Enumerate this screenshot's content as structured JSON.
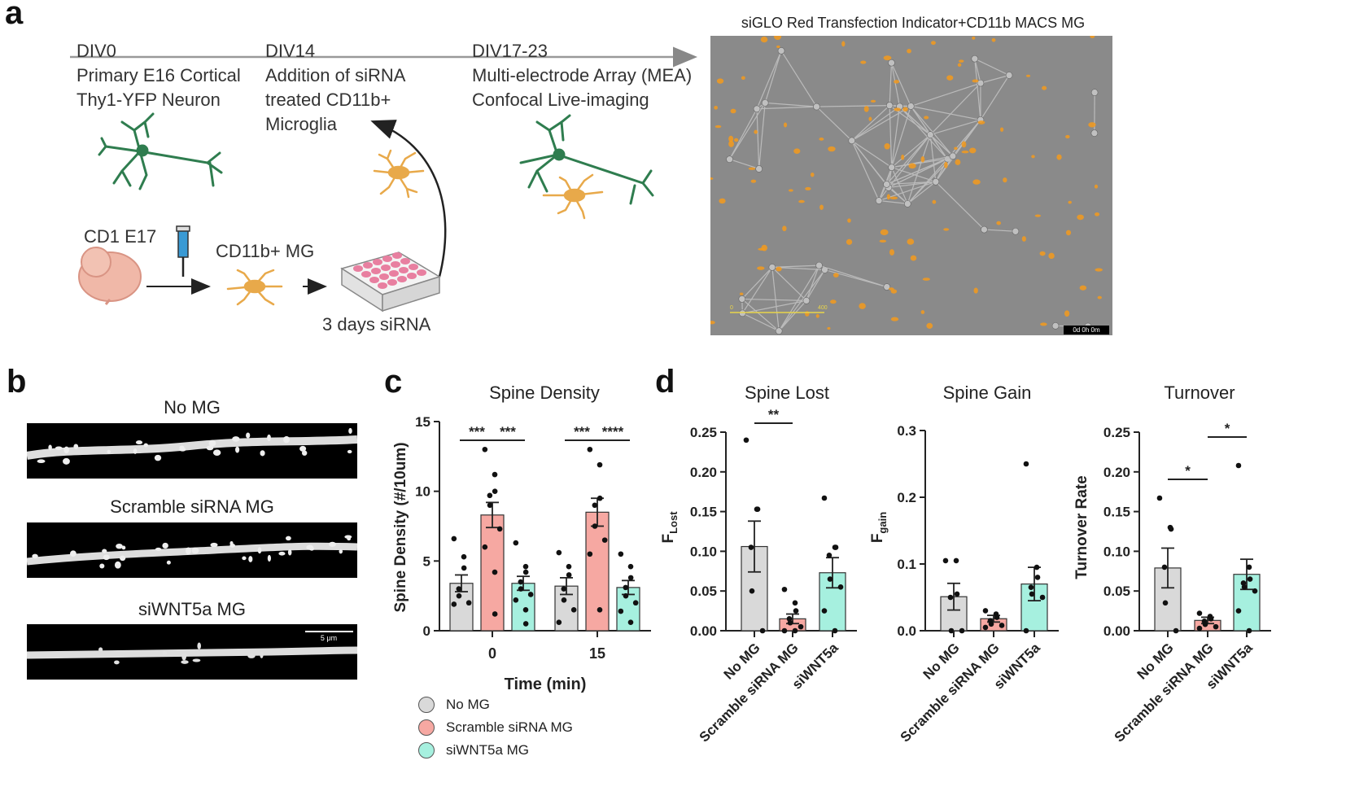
{
  "panels": {
    "a": "a",
    "b": "b",
    "c": "c",
    "d": "d"
  },
  "timeline": {
    "stages": [
      {
        "day": "DIV0",
        "lines": [
          "Primary E16 Cortical",
          "Thy1-YFP Neuron"
        ]
      },
      {
        "day": "DIV14",
        "lines": [
          "Addition of siRNA",
          "treated CD11b+",
          "Microglia"
        ]
      },
      {
        "day": "DIV17-23",
        "lines": [
          "Multi-electrode Array (MEA)",
          "Confocal Live-imaging"
        ]
      }
    ],
    "source_label": "CD1 E17",
    "mg_label": "CD11b+ MG",
    "sirna_label": "3 days siRNA"
  },
  "micrograph": {
    "title": "siGLO Red Transfection Indicator+CD11b MACS MG",
    "scale_start": "0",
    "scale_end": "400",
    "timestamp": "0d 0h 0m"
  },
  "panel_b": {
    "captions": [
      "No MG",
      "Scramble siRNA MG",
      "siWNT5a MG"
    ],
    "scale_bar": "5 μm"
  },
  "colors": {
    "no_mg": "#d9d9d9",
    "scramble": "#f6a8a2",
    "siwnt5a": "#a6f0df"
  },
  "chart_data": [
    {
      "type": "bar",
      "title": "Spine Density",
      "xlabel": "Time (min)",
      "ylabel": "Spine Density (#/10um)",
      "categories": [
        "0",
        "15"
      ],
      "ylim": [
        0,
        15
      ],
      "yticks": [
        "0",
        "5",
        "10",
        "15"
      ],
      "series": [
        {
          "name": "No MG",
          "values": [
            3.4,
            3.2
          ],
          "errors": [
            0.6,
            0.6
          ],
          "points": [
            [
              6.6,
              5.3,
              4.5,
              3.0,
              2.5,
              2.0,
              1.9
            ],
            [
              5.6,
              4.6,
              4.0,
              3.0,
              2.2,
              1.5,
              0.6
            ]
          ]
        },
        {
          "name": "Scramble siRNA MG",
          "values": [
            8.3,
            8.5
          ],
          "errors": [
            0.9,
            1.0
          ],
          "points": [
            [
              13.0,
              11.2,
              10.0,
              9.7,
              9.0,
              7.3,
              6.0,
              4.2,
              1.2
            ],
            [
              13.0,
              11.9,
              9.5,
              9.0,
              7.5,
              6.5,
              5.5,
              1.5
            ]
          ]
        },
        {
          "name": "siWNT5a MG",
          "values": [
            3.4,
            3.1
          ],
          "errors": [
            0.5,
            0.5
          ],
          "points": [
            [
              6.3,
              4.6,
              4.2,
              3.5,
              3.0,
              2.6,
              2.2,
              1.5,
              0.5
            ],
            [
              5.5,
              4.6,
              3.8,
              3.1,
              2.5,
              2.0,
              1.4,
              0.6
            ]
          ]
        }
      ],
      "significance": [
        {
          "group": "0",
          "from": 0,
          "to": 1,
          "label": "***"
        },
        {
          "group": "0",
          "from": 1,
          "to": 2,
          "label": "***"
        },
        {
          "group": "15",
          "from": 0,
          "to": 1,
          "label": "***"
        },
        {
          "group": "15",
          "from": 1,
          "to": 2,
          "label": "****"
        }
      ],
      "legend": [
        "No MG",
        "Scramble siRNA MG",
        "siWNT5a MG"
      ]
    },
    {
      "type": "bar",
      "title": "Spine Lost",
      "ylabel_main": "F",
      "ylabel_sub": "Lost",
      "categories": [
        "No MG",
        "Scramble siRNA MG",
        "siWNT5a"
      ],
      "ylim": [
        0,
        0.25
      ],
      "yticks": [
        "0.00",
        "0.05",
        "0.10",
        "0.15",
        "0.20",
        "0.25"
      ],
      "values": [
        0.106,
        0.015,
        0.073
      ],
      "errors": [
        0.032,
        0.006,
        0.019
      ],
      "points": [
        [
          0.24,
          0.153,
          0.153,
          0.105,
          0.05,
          0.0
        ],
        [
          0.052,
          0.035,
          0.025,
          0.015,
          0.01,
          0.005,
          0.0,
          0.0
        ],
        [
          0.167,
          0.105,
          0.105,
          0.095,
          0.065,
          0.055,
          0.025,
          0.0
        ]
      ],
      "significance": [
        {
          "from": 0,
          "to": 1,
          "label": "**"
        }
      ]
    },
    {
      "type": "bar",
      "title": "Spine Gain",
      "ylabel_main": "F",
      "ylabel_sub": "gain",
      "categories": [
        "No MG",
        "Scramble siRNA MG",
        "siWNT5a"
      ],
      "ylim": [
        0,
        0.3
      ],
      "yticks": [
        "0.0",
        "0.1",
        "0.2",
        "0.3"
      ],
      "values": [
        0.051,
        0.018,
        0.07
      ],
      "errors": [
        0.02,
        0.005,
        0.025
      ],
      "points": [
        [
          0.105,
          0.105,
          0.055,
          0.05,
          0.0,
          0.0
        ],
        [
          0.03,
          0.025,
          0.02,
          0.015,
          0.01,
          0.008,
          0.005
        ],
        [
          0.25,
          0.095,
          0.08,
          0.065,
          0.055,
          0.05,
          0.0
        ]
      ],
      "significance": []
    },
    {
      "type": "bar",
      "title": "Turnover",
      "ylabel": "Turnover Rate",
      "categories": [
        "No MG",
        "Scramble siRNA MG",
        "siWNT5a"
      ],
      "ylim": [
        0,
        0.25
      ],
      "yticks": [
        "0.00",
        "0.05",
        "0.10",
        "0.15",
        "0.20",
        "0.25"
      ],
      "values": [
        0.079,
        0.013,
        0.071
      ],
      "errors": [
        0.025,
        0.004,
        0.019
      ],
      "points": [
        [
          0.167,
          0.13,
          0.128,
          0.08,
          0.035,
          0.0
        ],
        [
          0.022,
          0.018,
          0.015,
          0.012,
          0.008,
          0.005,
          0.003
        ],
        [
          0.208,
          0.08,
          0.065,
          0.06,
          0.055,
          0.05,
          0.025,
          0.0
        ]
      ],
      "significance": [
        {
          "from": 0,
          "to": 1,
          "label": "*"
        },
        {
          "from": 1,
          "to": 2,
          "label": "*"
        }
      ]
    }
  ]
}
